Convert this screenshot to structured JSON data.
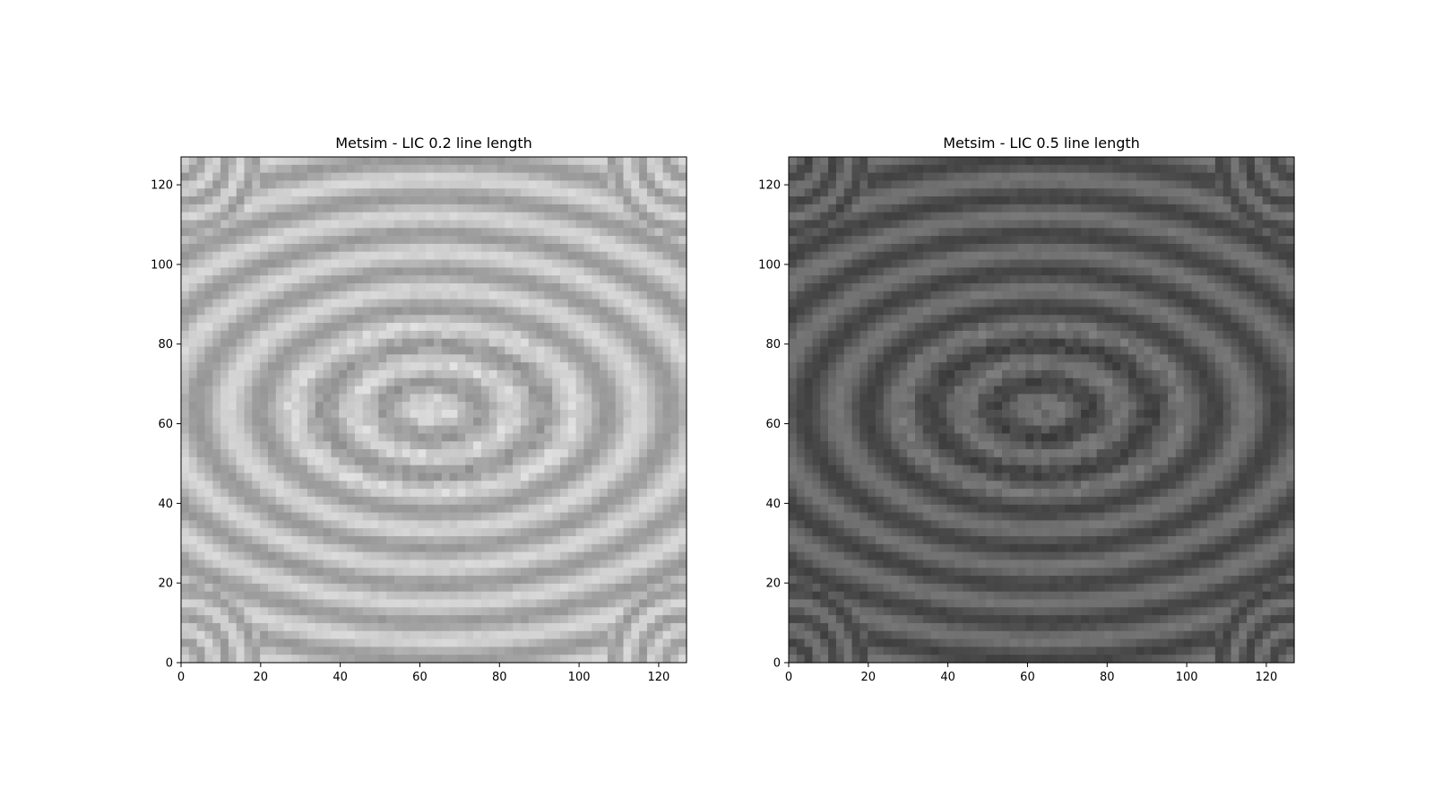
{
  "chart_data": [
    {
      "type": "heatmap",
      "title": "Metsim - LIC 0.2 line length",
      "xlabel": "",
      "ylabel": "",
      "xlim": [
        0,
        127
      ],
      "ylim": [
        0,
        127
      ],
      "xticks": [
        0,
        20,
        40,
        60,
        80,
        100,
        120
      ],
      "yticks": [
        0,
        20,
        40,
        60,
        80,
        100,
        120
      ],
      "colormap": "gray",
      "grid": false,
      "brightness": 0.72,
      "contrast": 0.12
    },
    {
      "type": "heatmap",
      "title": "Metsim - LIC 0.5 line length",
      "xlabel": "",
      "ylabel": "",
      "xlim": [
        0,
        127
      ],
      "ylim": [
        0,
        127
      ],
      "xticks": [
        0,
        20,
        40,
        60,
        80,
        100,
        120
      ],
      "yticks": [
        0,
        20,
        40,
        60,
        80,
        100,
        120
      ],
      "colormap": "gray",
      "grid": false,
      "brightness": 0.36,
      "contrast": 0.1
    }
  ]
}
